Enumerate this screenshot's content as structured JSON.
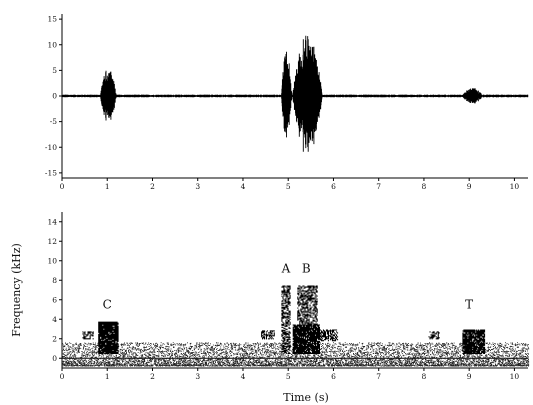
{
  "chart_data": [
    {
      "type": "line",
      "panel": "waveform",
      "xlabel": "",
      "ylabel": "",
      "xlim": [
        0,
        10.3
      ],
      "ylim": [
        -16,
        16
      ],
      "xticks": [
        0,
        1,
        2,
        3,
        4,
        5,
        6,
        7,
        8,
        9,
        10
      ],
      "yticks": [
        15,
        10,
        5,
        0,
        -5,
        -10,
        -15
      ],
      "ytick_labels": [
        "15",
        "10",
        "5",
        "0",
        "-5",
        "-10",
        "-15"
      ],
      "bursts": [
        {
          "start": 0.85,
          "end": 1.2,
          "peak": 5.5,
          "trough": -5
        },
        {
          "start": 4.85,
          "end": 5.08,
          "peak": 9,
          "trough": -8
        },
        {
          "start": 5.1,
          "end": 5.75,
          "peak": 12,
          "trough": -11
        },
        {
          "start": 8.85,
          "end": 9.3,
          "peak": 1.6,
          "trough": -1.2
        }
      ],
      "baseline_noise": 0.2,
      "grid": false
    },
    {
      "type": "heatmap",
      "panel": "spectrogram",
      "xlabel": "Time (s)",
      "ylabel": "Frequency (kHz)",
      "xlim": [
        0,
        10.3
      ],
      "ylim": [
        -1,
        15
      ],
      "xticks": [
        0,
        1,
        2,
        3,
        4,
        5,
        6,
        7,
        8,
        9,
        10
      ],
      "yticks": [
        0,
        2,
        4,
        6,
        8,
        10,
        12,
        14
      ],
      "blobs": [
        {
          "t0": 0.8,
          "t1": 1.25,
          "f0": 0.5,
          "f1": 3.8,
          "density": 0.9
        },
        {
          "t0": 0.45,
          "t1": 0.7,
          "f0": 2.0,
          "f1": 2.8,
          "density": 0.5
        },
        {
          "t0": 4.4,
          "t1": 4.7,
          "f0": 2.0,
          "f1": 2.9,
          "density": 0.5
        },
        {
          "t0": 4.85,
          "t1": 5.05,
          "f0": 0.5,
          "f1": 7.5,
          "density": 0.55
        },
        {
          "t0": 5.1,
          "t1": 5.7,
          "f0": 0.5,
          "f1": 3.5,
          "density": 0.9
        },
        {
          "t0": 5.2,
          "t1": 5.65,
          "f0": 3.5,
          "f1": 7.5,
          "density": 0.55
        },
        {
          "t0": 5.7,
          "t1": 6.1,
          "f0": 1.8,
          "f1": 3.0,
          "density": 0.5
        },
        {
          "t0": 8.1,
          "t1": 8.35,
          "f0": 2.0,
          "f1": 2.8,
          "density": 0.5
        },
        {
          "t0": 8.85,
          "t1": 9.35,
          "f0": 0.5,
          "f1": 3.0,
          "density": 0.85
        }
      ],
      "noise_floor_max": 1.6,
      "annotations": [
        {
          "text": "C",
          "x": 1.0,
          "y": 5.1
        },
        {
          "text": "A",
          "x": 4.95,
          "y": 8.8
        },
        {
          "text": "B",
          "x": 5.4,
          "y": 8.8
        },
        {
          "text": "T",
          "x": 9.0,
          "y": 5.1
        }
      ],
      "grid": false
    }
  ]
}
